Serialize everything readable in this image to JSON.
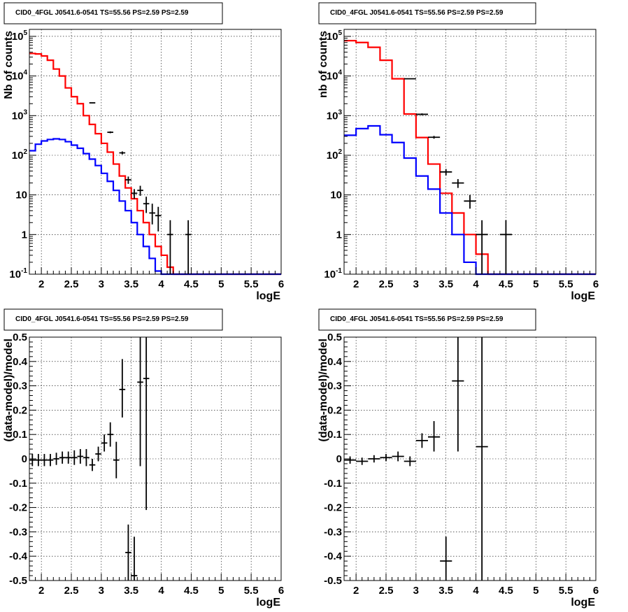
{
  "chart_data": [
    {
      "type": "step",
      "title": "CID0_4FGL J0541.6-0541 TS=55.56 PS=2.59 PS=2.59",
      "xlabel": "logE",
      "ylabel": "Nb of counts",
      "yscale": "log",
      "xlim": [
        1.8,
        6.0
      ],
      "ylim": [
        0.1,
        150000
      ],
      "grid": true,
      "xticks": [
        "2",
        "2.5",
        "3",
        "3.5",
        "4",
        "4.5",
        "5",
        "5.5",
        "6"
      ],
      "yticks": [
        "10^-1",
        "1",
        "10",
        "10^2",
        "10^3",
        "10^4",
        "10^5"
      ],
      "bin_edges": [
        1.8,
        1.9,
        2.0,
        2.1,
        2.2,
        2.3,
        2.4,
        2.5,
        2.6,
        2.7,
        2.8,
        2.9,
        3.0,
        3.1,
        3.2,
        3.3,
        3.4,
        3.5,
        3.6,
        3.7,
        3.8,
        3.9,
        4.0,
        4.1,
        4.2,
        4.3,
        4.4,
        4.5,
        4.6,
        4.7,
        4.8,
        4.9,
        5.0,
        5.1,
        5.2,
        5.3,
        5.4,
        5.5,
        5.6,
        5.7,
        5.8,
        5.9,
        6.0
      ],
      "series": [
        {
          "color": "#ff0000",
          "values": [
            37000,
            36000,
            32000,
            25000,
            15000,
            10000,
            5000,
            3000,
            2000,
            1000,
            600,
            350,
            200,
            120,
            60,
            30,
            15,
            8,
            4,
            2,
            1,
            0.5,
            0.3,
            0.15,
            0.1,
            0.1,
            0.1,
            0.1,
            0.1,
            0.1,
            0.1,
            0.1,
            0.1,
            0.1,
            0.1,
            0.1,
            0.1,
            0.1,
            0.1,
            0.1,
            0.1,
            0.1
          ]
        },
        {
          "color": "#0000ff",
          "values": [
            130,
            190,
            230,
            250,
            260,
            250,
            220,
            180,
            150,
            110,
            80,
            55,
            35,
            22,
            13,
            7,
            4,
            2,
            1,
            0.5,
            0.25,
            0.12,
            0.1,
            0.1,
            0.1,
            0.1,
            0.1,
            0.1,
            0.1,
            0.1,
            0.1,
            0.1,
            0.1,
            0.1,
            0.1,
            0.1,
            0.1,
            0.1,
            0.1,
            0.1,
            0.1,
            0.1
          ]
        }
      ],
      "data_points": [
        {
          "x": 2.85,
          "y": 2100,
          "xerr": 0.05,
          "ylo": 2050,
          "yhi": 2150
        },
        {
          "x": 3.15,
          "y": 380,
          "xerr": 0.05,
          "ylo": 360,
          "yhi": 400
        },
        {
          "x": 3.35,
          "y": 115,
          "xerr": 0.05,
          "ylo": 105,
          "yhi": 125
        },
        {
          "x": 3.45,
          "y": 24,
          "xerr": 0.05,
          "ylo": 19,
          "yhi": 29
        },
        {
          "x": 3.55,
          "y": 11,
          "xerr": 0.05,
          "ylo": 8,
          "yhi": 14
        },
        {
          "x": 3.65,
          "y": 13,
          "xerr": 0.05,
          "ylo": 9.5,
          "yhi": 17
        },
        {
          "x": 3.75,
          "y": 6,
          "xerr": 0.05,
          "ylo": 3.5,
          "yhi": 9
        },
        {
          "x": 3.85,
          "y": 3.5,
          "xerr": 0.05,
          "ylo": 1.8,
          "yhi": 6
        },
        {
          "x": 3.95,
          "y": 3,
          "xerr": 0.05,
          "ylo": 1.2,
          "yhi": 5
        },
        {
          "x": 4.15,
          "y": 1,
          "xerr": 0.05,
          "ylo": 0.1,
          "yhi": 2.3
        },
        {
          "x": 4.45,
          "y": 1,
          "xerr": 0.05,
          "ylo": 0.1,
          "yhi": 2.3
        }
      ]
    },
    {
      "type": "step",
      "title": "CID0_4FGL J0541.6-0541 TS=55.56 PS=2.59 PS=2.59",
      "xlabel": "logE",
      "ylabel": "nb of counts",
      "yscale": "log",
      "xlim": [
        1.8,
        6.0
      ],
      "ylim": [
        0.1,
        150000
      ],
      "grid": true,
      "xticks": [
        "2",
        "2.5",
        "3",
        "3.5",
        "4",
        "4.5",
        "5",
        "5.5",
        "6"
      ],
      "yticks": [
        "10^-1",
        "1",
        "10",
        "10^2",
        "10^3",
        "10^4",
        "10^5"
      ],
      "bin_edges": [
        1.8,
        2.0,
        2.2,
        2.4,
        2.6,
        2.8,
        3.0,
        3.2,
        3.4,
        3.6,
        3.8,
        4.0,
        4.2,
        4.4,
        4.6,
        4.8,
        5.0,
        5.2,
        5.4,
        5.6,
        5.8,
        6.0
      ],
      "series": [
        {
          "color": "#ff0000",
          "values": [
            78000,
            70000,
            53000,
            25000,
            8500,
            1100,
            280,
            60,
            11,
            3.5,
            1,
            0.32,
            0.1,
            0.1,
            0.1,
            0.1,
            0.1,
            0.1,
            0.1,
            0.1,
            0.1
          ]
        },
        {
          "color": "#0000ff",
          "values": [
            320,
            470,
            550,
            330,
            210,
            85,
            30,
            14,
            3.5,
            1,
            0.2,
            0.1,
            0.1,
            0.1,
            0.1,
            0.1,
            0.1,
            0.1,
            0.1,
            0.1,
            0.1
          ]
        }
      ],
      "data_points": [
        {
          "x": 2.9,
          "y": 8500,
          "xerr": 0.1,
          "ylo": 8300,
          "yhi": 8700
        },
        {
          "x": 3.1,
          "y": 1080,
          "xerr": 0.1,
          "ylo": 1020,
          "yhi": 1140
        },
        {
          "x": 3.3,
          "y": 285,
          "xerr": 0.1,
          "ylo": 262,
          "yhi": 308
        },
        {
          "x": 3.5,
          "y": 38,
          "xerr": 0.1,
          "ylo": 31,
          "yhi": 45
        },
        {
          "x": 3.7,
          "y": 20,
          "xerr": 0.1,
          "ylo": 15,
          "yhi": 25
        },
        {
          "x": 3.9,
          "y": 7,
          "xerr": 0.1,
          "ylo": 4.5,
          "yhi": 10
        },
        {
          "x": 4.1,
          "y": 1,
          "xerr": 0.1,
          "ylo": 0.1,
          "yhi": 2.3
        },
        {
          "x": 4.5,
          "y": 1,
          "xerr": 0.1,
          "ylo": 0.1,
          "yhi": 2.3
        }
      ]
    },
    {
      "type": "errorbar",
      "title": "CID0_4FGL J0541.6-0541 TS=55.56 PS=2.59 PS=2.59",
      "xlabel": "logE",
      "ylabel": "(data-model)/model",
      "yscale": "linear",
      "xlim": [
        1.8,
        6.0
      ],
      "ylim": [
        -0.5,
        0.5
      ],
      "grid": true,
      "xticks": [
        "2",
        "2.5",
        "3",
        "3.5",
        "4",
        "4.5",
        "5",
        "5.5",
        "6"
      ],
      "yticks": [
        "-0.5",
        "-0.4",
        "-0.3",
        "-0.2",
        "-0.1",
        "0",
        "0.1",
        "0.2",
        "0.3",
        "0.4",
        "0.5"
      ],
      "data_points": [
        {
          "x": 1.85,
          "y": -0.005,
          "xerr": 0.05,
          "ylo": -0.03,
          "yhi": 0.02
        },
        {
          "x": 1.95,
          "y": -0.005,
          "xerr": 0.05,
          "ylo": -0.03,
          "yhi": 0.02
        },
        {
          "x": 2.05,
          "y": -0.005,
          "xerr": 0.05,
          "ylo": -0.03,
          "yhi": 0.02
        },
        {
          "x": 2.15,
          "y": -0.005,
          "xerr": 0.05,
          "ylo": -0.03,
          "yhi": 0.02
        },
        {
          "x": 2.25,
          "y": 0.0,
          "xerr": 0.05,
          "ylo": -0.025,
          "yhi": 0.025
        },
        {
          "x": 2.35,
          "y": 0.005,
          "xerr": 0.05,
          "ylo": -0.02,
          "yhi": 0.03
        },
        {
          "x": 2.45,
          "y": 0.005,
          "xerr": 0.05,
          "ylo": -0.02,
          "yhi": 0.03
        },
        {
          "x": 2.55,
          "y": 0.005,
          "xerr": 0.05,
          "ylo": -0.025,
          "yhi": 0.035
        },
        {
          "x": 2.65,
          "y": 0.01,
          "xerr": 0.05,
          "ylo": -0.02,
          "yhi": 0.04
        },
        {
          "x": 2.75,
          "y": 0.005,
          "xerr": 0.05,
          "ylo": -0.03,
          "yhi": 0.04
        },
        {
          "x": 2.85,
          "y": -0.025,
          "xerr": 0.05,
          "ylo": -0.05,
          "yhi": 0.0
        },
        {
          "x": 2.95,
          "y": 0.02,
          "xerr": 0.05,
          "ylo": -0.01,
          "yhi": 0.05
        },
        {
          "x": 3.05,
          "y": 0.065,
          "xerr": 0.05,
          "ylo": 0.03,
          "yhi": 0.1
        },
        {
          "x": 3.15,
          "y": 0.1,
          "xerr": 0.05,
          "ylo": 0.05,
          "yhi": 0.15
        },
        {
          "x": 3.25,
          "y": -0.005,
          "xerr": 0.05,
          "ylo": -0.08,
          "yhi": 0.07
        },
        {
          "x": 3.35,
          "y": 0.285,
          "xerr": 0.05,
          "ylo": 0.17,
          "yhi": 0.41
        },
        {
          "x": 3.45,
          "y": -0.385,
          "xerr": 0.05,
          "ylo": -0.5,
          "yhi": -0.27
        },
        {
          "x": 3.55,
          "y": -0.48,
          "xerr": 0.05,
          "ylo": -0.5,
          "yhi": -0.32
        },
        {
          "x": 3.65,
          "y": 0.315,
          "xerr": 0.05,
          "ylo": -0.03,
          "yhi": 0.5
        },
        {
          "x": 3.75,
          "y": 0.33,
          "xerr": 0.05,
          "ylo": -0.21,
          "yhi": 0.5
        }
      ]
    },
    {
      "type": "errorbar",
      "title": "CID0_4FGL J0541.6-0541 TS=55.56 PS=2.59 PS=2.59",
      "xlabel": "logE",
      "ylabel": "(data-model)/model",
      "yscale": "linear",
      "xlim": [
        1.8,
        6.0
      ],
      "ylim": [
        -0.5,
        0.5
      ],
      "grid": true,
      "xticks": [
        "2",
        "2.5",
        "3",
        "3.5",
        "4",
        "4.5",
        "5",
        "5.5",
        "6"
      ],
      "yticks": [
        "-0.5",
        "-0.4",
        "-0.3",
        "-0.2",
        "-0.1",
        "0",
        "0.1",
        "0.2",
        "0.3",
        "0.4",
        "0.5"
      ],
      "data_points": [
        {
          "x": 1.9,
          "y": -0.005,
          "xerr": 0.1,
          "ylo": -0.02,
          "yhi": 0.01
        },
        {
          "x": 2.1,
          "y": -0.01,
          "xerr": 0.1,
          "ylo": -0.025,
          "yhi": 0.005
        },
        {
          "x": 2.3,
          "y": 0.0,
          "xerr": 0.1,
          "ylo": -0.015,
          "yhi": 0.015
        },
        {
          "x": 2.5,
          "y": 0.005,
          "xerr": 0.1,
          "ylo": -0.01,
          "yhi": 0.02
        },
        {
          "x": 2.7,
          "y": 0.01,
          "xerr": 0.1,
          "ylo": -0.01,
          "yhi": 0.03
        },
        {
          "x": 2.9,
          "y": -0.01,
          "xerr": 0.1,
          "ylo": -0.03,
          "yhi": 0.01
        },
        {
          "x": 3.1,
          "y": 0.075,
          "xerr": 0.1,
          "ylo": 0.045,
          "yhi": 0.105
        },
        {
          "x": 3.3,
          "y": 0.09,
          "xerr": 0.1,
          "ylo": 0.03,
          "yhi": 0.155
        },
        {
          "x": 3.5,
          "y": -0.42,
          "xerr": 0.1,
          "ylo": -0.5,
          "yhi": -0.32
        },
        {
          "x": 3.7,
          "y": 0.32,
          "xerr": 0.1,
          "ylo": 0.03,
          "yhi": 0.5
        },
        {
          "x": 4.1,
          "y": 0.05,
          "xerr": 0.1,
          "ylo": -0.5,
          "yhi": 0.5
        }
      ]
    }
  ]
}
